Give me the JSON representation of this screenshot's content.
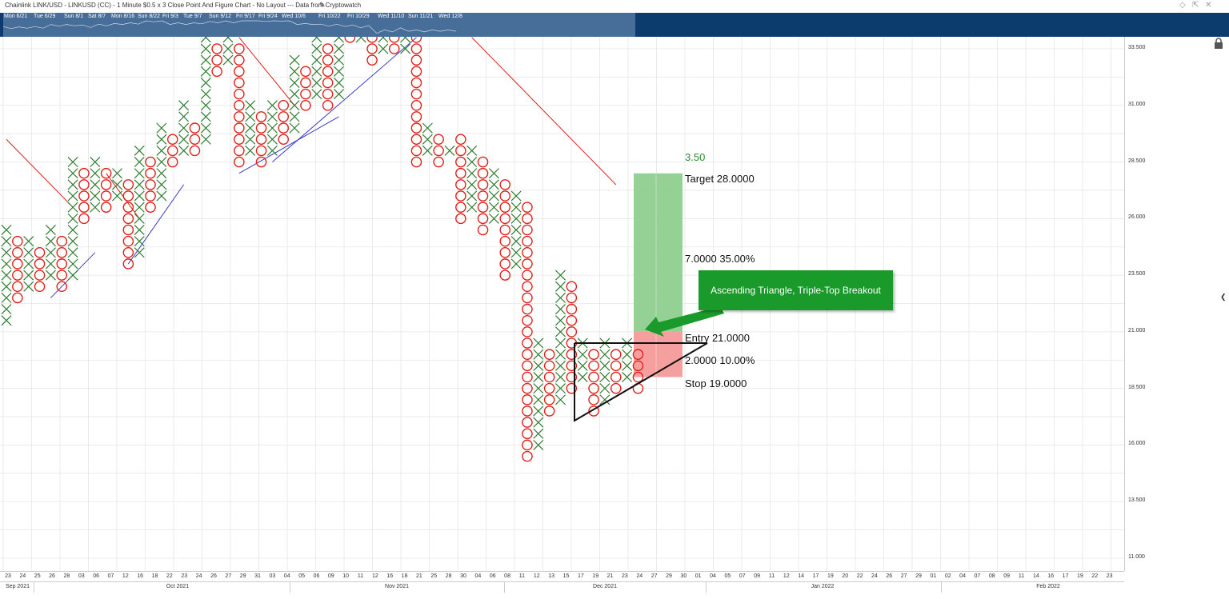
{
  "window": {
    "title": "Chainlink LINK/USD - LINKUSD (CC) - 1 Minute $0.5 x 3 Close Point And Figure Chart - No Layout --- Data from Cryptowatch",
    "icons": [
      "edit-icon",
      "diamond-icon",
      "pin-icon",
      "close-icon",
      "lock-icon",
      "collapse-icon"
    ]
  },
  "navigator": {
    "dates": [
      "Mon 6/21",
      "Tue 6/29",
      "Sun 8/1",
      "Sat 8/7",
      "Mon 8/16",
      "Sun 8/22",
      "Fri 9/3",
      "Tue 9/7",
      "Sun 9/12",
      "Fri 9/17",
      "Fri 9/24",
      "Wed 10/6",
      "Fri 10/22",
      "Fri 10/29",
      "Wed 11/10",
      "Sun 11/21",
      "Wed 12/8"
    ]
  },
  "price_axis": {
    "ticks": [
      "33.500",
      "31.000",
      "28.500",
      "26.000",
      "23.500",
      "21.000",
      "18.500",
      "16.000",
      "13.500",
      "11.000"
    ]
  },
  "time_axis": {
    "days": [
      "23",
      "24",
      "25",
      "26",
      "28",
      "03",
      "06",
      "07",
      "12",
      "16",
      "18",
      "22",
      "23",
      "24",
      "26",
      "27",
      "29",
      "31",
      "03",
      "04",
      "05",
      "06",
      "09",
      "10",
      "11",
      "12",
      "16",
      "18",
      "21",
      "25",
      "28",
      "30",
      "04",
      "06",
      "08",
      "11",
      "12",
      "13",
      "15",
      "17",
      "19",
      "21",
      "23",
      "24",
      "27",
      "29",
      "30",
      "01",
      "04",
      "05",
      "07",
      "09",
      "11",
      "12",
      "14",
      "17",
      "19",
      "20",
      "22",
      "24",
      "26",
      "27",
      "29",
      "01",
      "02",
      "04",
      "07",
      "08",
      "09",
      "11",
      "14",
      "16",
      "17",
      "19",
      "22",
      "23"
    ],
    "months": [
      "Sep 2021",
      "Oct 2021",
      "Nov 2021",
      "Dec 2021",
      "Jan 2022",
      "Feb 2022"
    ]
  },
  "trade_setup": {
    "target_label": "Target  28.0000",
    "gain_label": "7.0000  35.00%",
    "entry_label": "Entry  21.0000",
    "risk_label": "2.0000  10.00%",
    "stop_label": "Stop  19.0000",
    "reward_risk": "3.50",
    "annotation": "Ascending Triangle, Triple-Top Breakout"
  },
  "colors": {
    "x_column": "#2e7d32",
    "o_column": "#e0201b",
    "navigator_bg": "#0c3c6e",
    "reward_zone": "#8fcf8f",
    "risk_zone": "#f59a9a",
    "callout": "#1a9a2a",
    "support_line": "#3c3cc8",
    "resistance_line": "#e0201b"
  },
  "chart_data": {
    "type": "point-and-figure",
    "symbol": "LINKUSD",
    "box_size": 0.5,
    "reversal": 3,
    "ylim": [
      10.5,
      34.5
    ],
    "columns": [
      {
        "type": "X",
        "low": 21.5,
        "high": 25.5
      },
      {
        "type": "O",
        "low": 22.5,
        "high": 25.0
      },
      {
        "type": "X",
        "low": 23.0,
        "high": 25.0
      },
      {
        "type": "O",
        "low": 23.0,
        "high": 24.5
      },
      {
        "type": "X",
        "low": 23.5,
        "high": 25.5
      },
      {
        "type": "O",
        "low": 23.0,
        "high": 25.0
      },
      {
        "type": "X",
        "low": 23.5,
        "high": 28.5
      },
      {
        "type": "O",
        "low": 26.0,
        "high": 28.0
      },
      {
        "type": "X",
        "low": 26.5,
        "high": 28.5
      },
      {
        "type": "O",
        "low": 26.5,
        "high": 28.0
      },
      {
        "type": "X",
        "low": 27.0,
        "high": 28.0
      },
      {
        "type": "O",
        "low": 24.0,
        "high": 27.5
      },
      {
        "type": "X",
        "low": 24.5,
        "high": 29.0
      },
      {
        "type": "O",
        "low": 26.5,
        "high": 28.5
      },
      {
        "type": "X",
        "low": 27.0,
        "high": 30.0
      },
      {
        "type": "O",
        "low": 28.5,
        "high": 29.5
      },
      {
        "type": "X",
        "low": 29.0,
        "high": 31.0
      },
      {
        "type": "O",
        "low": 29.0,
        "high": 30.0
      },
      {
        "type": "X",
        "low": 29.5,
        "high": 34.0
      },
      {
        "type": "O",
        "low": 32.5,
        "high": 33.5
      },
      {
        "type": "X",
        "low": 33.0,
        "high": 34.0
      },
      {
        "type": "O",
        "low": 28.5,
        "high": 33.5
      },
      {
        "type": "X",
        "low": 29.0,
        "high": 31.0
      },
      {
        "type": "O",
        "low": 28.5,
        "high": 30.5
      },
      {
        "type": "X",
        "low": 29.0,
        "high": 31.0
      },
      {
        "type": "O",
        "low": 29.5,
        "high": 31.0
      },
      {
        "type": "X",
        "low": 30.0,
        "high": 33.0
      },
      {
        "type": "O",
        "low": 31.0,
        "high": 32.5
      },
      {
        "type": "X",
        "low": 31.5,
        "high": 34.0
      },
      {
        "type": "O",
        "low": 31.0,
        "high": 33.5
      },
      {
        "type": "X",
        "low": 31.5,
        "high": 34.0
      },
      {
        "type": "O",
        "low": 34.0,
        "high": 34.0
      },
      {
        "type": "X",
        "low": 34.0,
        "high": 34.0
      },
      {
        "type": "O",
        "low": 33.0,
        "high": 34.0
      },
      {
        "type": "X",
        "low": 33.5,
        "high": 34.0
      },
      {
        "type": "O",
        "low": 33.5,
        "high": 34.0
      },
      {
        "type": "X",
        "low": 33.5,
        "high": 34.0
      },
      {
        "type": "O",
        "low": 28.5,
        "high": 34.0
      },
      {
        "type": "X",
        "low": 29.0,
        "high": 30.0
      },
      {
        "type": "O",
        "low": 28.5,
        "high": 29.5
      },
      {
        "type": "X",
        "low": 29.0,
        "high": 29.0
      },
      {
        "type": "O",
        "low": 26.0,
        "high": 29.5
      },
      {
        "type": "X",
        "low": 26.5,
        "high": 29.0
      },
      {
        "type": "O",
        "low": 25.5,
        "high": 28.5
      },
      {
        "type": "X",
        "low": 26.0,
        "high": 28.0
      },
      {
        "type": "O",
        "low": 23.5,
        "high": 27.5
      },
      {
        "type": "X",
        "low": 24.0,
        "high": 27.0
      },
      {
        "type": "O",
        "low": 15.5,
        "high": 26.5
      },
      {
        "type": "X",
        "low": 16.0,
        "high": 20.5
      },
      {
        "type": "O",
        "low": 17.5,
        "high": 20.0
      },
      {
        "type": "X",
        "low": 18.0,
        "high": 23.5
      },
      {
        "type": "O",
        "low": 18.5,
        "high": 23.0
      },
      {
        "type": "X",
        "low": 19.0,
        "high": 20.5
      },
      {
        "type": "O",
        "low": 17.5,
        "high": 20.0
      },
      {
        "type": "X",
        "low": 18.0,
        "high": 20.5
      },
      {
        "type": "O",
        "low": 18.5,
        "high": 20.0
      },
      {
        "type": "X",
        "low": 19.0,
        "high": 20.5
      },
      {
        "type": "O",
        "low": 18.5,
        "high": 20.0
      }
    ],
    "trend_lines": [
      {
        "kind": "support",
        "from": {
          "col": 4,
          "price": 22.5
        },
        "to": {
          "col": 8,
          "price": 24.5
        }
      },
      {
        "kind": "support",
        "from": {
          "col": 11,
          "price": 24.0
        },
        "to": {
          "col": 16,
          "price": 27.5
        }
      },
      {
        "kind": "support",
        "from": {
          "col": 21,
          "price": 28.0
        },
        "to": {
          "col": 30,
          "price": 30.5
        }
      },
      {
        "kind": "support",
        "from": {
          "col": 24,
          "price": 28.5
        },
        "to": {
          "col": 37,
          "price": 34.0
        }
      },
      {
        "kind": "resistance",
        "from": {
          "col": 0,
          "price": 29.5
        },
        "to": {
          "col": 6,
          "price": 26.5
        }
      },
      {
        "kind": "resistance",
        "from": {
          "col": 9,
          "price": 28.0
        },
        "to": {
          "col": 12,
          "price": 26.0
        }
      },
      {
        "kind": "resistance",
        "from": {
          "col": 21,
          "price": 34.0
        },
        "to": {
          "col": 26,
          "price": 31.0
        }
      },
      {
        "kind": "resistance",
        "from": {
          "col": 42,
          "price": 34.0
        },
        "to": {
          "col": 55,
          "price": 27.5
        }
      }
    ],
    "triangle": {
      "top": 20.5,
      "apex_price": 20.5,
      "bottom": 17.5
    },
    "zones": {
      "target": 28.0,
      "entry": 21.0,
      "stop": 19.0
    }
  }
}
